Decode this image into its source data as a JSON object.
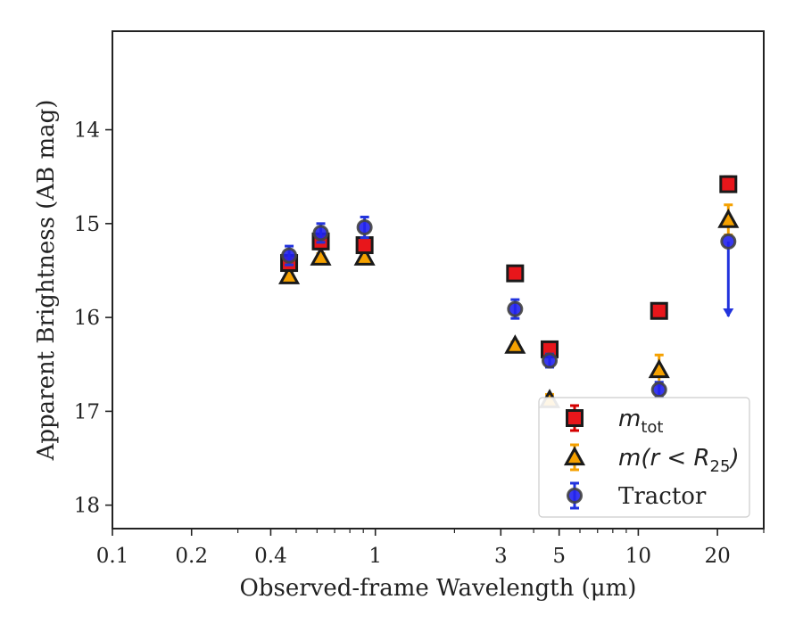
{
  "chart_data": {
    "type": "scatter",
    "xlabel": "Observed-frame Wavelength (μm)",
    "ylabel": "Apparent Brightness (AB mag)",
    "x_scale": "log",
    "xlim": [
      0.1,
      30
    ],
    "ylim": [
      18.25,
      12.95
    ],
    "y_inverted": true,
    "grid": false,
    "legend_position": "bottom-right",
    "x_ticks": [
      {
        "value": 0.1,
        "label": "0.1"
      },
      {
        "value": 0.2,
        "label": "0.2"
      },
      {
        "value": 0.4,
        "label": "0.4"
      },
      {
        "value": 1,
        "label": "1"
      },
      {
        "value": 3,
        "label": "3"
      },
      {
        "value": 5,
        "label": "5"
      },
      {
        "value": 10,
        "label": "10"
      },
      {
        "value": 20,
        "label": "20"
      }
    ],
    "y_ticks": [
      {
        "value": 14,
        "label": "14"
      },
      {
        "value": 15,
        "label": "15"
      },
      {
        "value": 16,
        "label": "16"
      },
      {
        "value": 17,
        "label": "17"
      },
      {
        "value": 18,
        "label": "18"
      }
    ],
    "series": [
      {
        "name": "m_tot",
        "marker": "square",
        "face_color": "#e8161b",
        "edge_color": "#1a1a1a",
        "error_color": "#d40000",
        "points": [
          {
            "x": 0.47,
            "y": 15.42,
            "err": 0.08
          },
          {
            "x": 0.62,
            "y": 15.19,
            "err": 0.08
          },
          {
            "x": 0.91,
            "y": 15.23,
            "err": 0.07
          },
          {
            "x": 3.4,
            "y": 15.53,
            "err": 0.06
          },
          {
            "x": 4.6,
            "y": 16.34,
            "err": 0.07
          },
          {
            "x": 12.0,
            "y": 15.93,
            "err": 0.07
          },
          {
            "x": 22.0,
            "y": 14.58,
            "err": 0.08
          }
        ]
      },
      {
        "name": "m(r<R25)",
        "marker": "triangle",
        "face_color": "#f5a100",
        "edge_color": "#1a1a1a",
        "error_color": "#f5a100",
        "points": [
          {
            "x": 0.47,
            "y": 15.56,
            "err": 0.04
          },
          {
            "x": 0.62,
            "y": 15.36,
            "err": 0.04
          },
          {
            "x": 0.91,
            "y": 15.36,
            "err": 0.04
          },
          {
            "x": 3.4,
            "y": 16.3,
            "err": 0.04
          },
          {
            "x": 4.6,
            "y": 16.88,
            "err": 0.06
          },
          {
            "x": 12.0,
            "y": 16.56,
            "err": 0.16
          },
          {
            "x": 22.0,
            "y": 14.96,
            "err": 0.16
          }
        ]
      },
      {
        "name": "Tractor",
        "marker": "circle",
        "face_color": "#2222ee",
        "edge_color": "#444444",
        "error_color": "#2233dd",
        "points": [
          {
            "x": 0.47,
            "y": 15.34,
            "err": 0.1
          },
          {
            "x": 0.62,
            "y": 15.1,
            "err": 0.1
          },
          {
            "x": 0.91,
            "y": 15.04,
            "err": 0.11
          },
          {
            "x": 3.4,
            "y": 15.91,
            "err": 0.1
          },
          {
            "x": 4.6,
            "y": 16.46,
            "err": 0.07
          },
          {
            "x": 12.0,
            "y": 16.77,
            "err": 0.08
          },
          {
            "x": 22.0,
            "y": 15.19,
            "err": 0.0,
            "upper_limit": true,
            "limit_to": 15.99
          }
        ]
      }
    ],
    "legend": [
      {
        "marker": "square",
        "label_main": "m",
        "label_sub": "tot",
        "color": "#e8161b",
        "edge": "#1a1a1a",
        "err": "#d40000"
      },
      {
        "marker": "triangle",
        "label_main": "m(r < R",
        "label_sub": "25",
        "label_tail": ")",
        "color": "#f5a100",
        "edge": "#1a1a1a",
        "err": "#f5a100"
      },
      {
        "marker": "circle",
        "label_main": "Tractor",
        "color": "#2222ee",
        "edge": "#444444",
        "err": "#2233dd"
      }
    ]
  }
}
